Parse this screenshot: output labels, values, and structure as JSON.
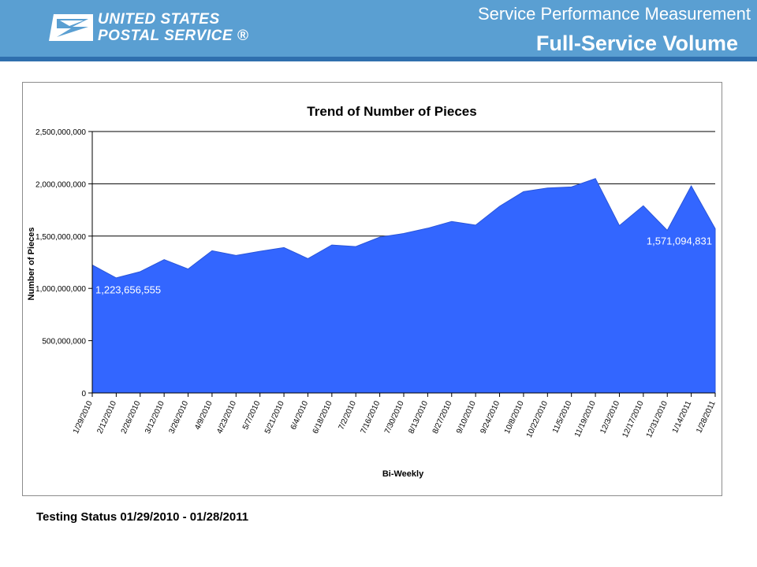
{
  "header": {
    "logo": {
      "line1": "UNITED STATES",
      "line2": "POSTAL SERVICE ®",
      "icon": "eagle-icon"
    },
    "subtitle": "Service Performance Measurement",
    "title": "Full-Service Volume"
  },
  "colors": {
    "header_bg": "#5a9fd2",
    "header_rule": "#2f6fae",
    "area_fill": "#3366ff"
  },
  "footer": {
    "status": "Testing Status 01/29/2010 - 01/28/2011"
  },
  "chart_data": {
    "type": "area",
    "title": "Trend of Number of Pieces",
    "xlabel": "Bi-Weekly",
    "ylabel": "Number of Pieces",
    "ylim": [
      0,
      2500000000
    ],
    "yticks": [
      0,
      500000000,
      1000000000,
      1500000000,
      2000000000,
      2500000000
    ],
    "ytick_labels": [
      "0",
      "500,000,000",
      "1,000,000,000",
      "1,500,000,000",
      "2,000,000,000",
      "2,500,000,000"
    ],
    "grid": true,
    "legend": "none",
    "categories": [
      "1/29/2010",
      "2/12/2010",
      "2/26/2010",
      "3/12/2010",
      "3/26/2010",
      "4/9/2010",
      "4/23/2010",
      "5/7/2010",
      "5/21/2010",
      "6/4/2010",
      "6/18/2010",
      "7/2/2010",
      "7/16/2010",
      "7/30/2010",
      "8/13/2010",
      "8/27/2010",
      "9/10/2010",
      "9/24/2010",
      "10/8/2010",
      "10/22/2010",
      "11/5/2010",
      "11/19/2010",
      "12/3/2010",
      "12/17/2010",
      "12/31/2010",
      "1/14/2011",
      "1/28/2011"
    ],
    "series": [
      {
        "values": [
          1223656555,
          1100000000,
          1160000000,
          1275000000,
          1185000000,
          1360000000,
          1315000000,
          1355000000,
          1390000000,
          1285000000,
          1415000000,
          1400000000,
          1490000000,
          1525000000,
          1575000000,
          1640000000,
          1605000000,
          1785000000,
          1925000000,
          1960000000,
          1970000000,
          2050000000,
          1600000000,
          1790000000,
          1555000000,
          1980000000,
          1571094831
        ]
      }
    ],
    "annotations": [
      {
        "category": "1/29/2010",
        "text": "1,223,656,555"
      },
      {
        "category": "1/28/2011",
        "text": "1,571,094,831"
      }
    ]
  }
}
